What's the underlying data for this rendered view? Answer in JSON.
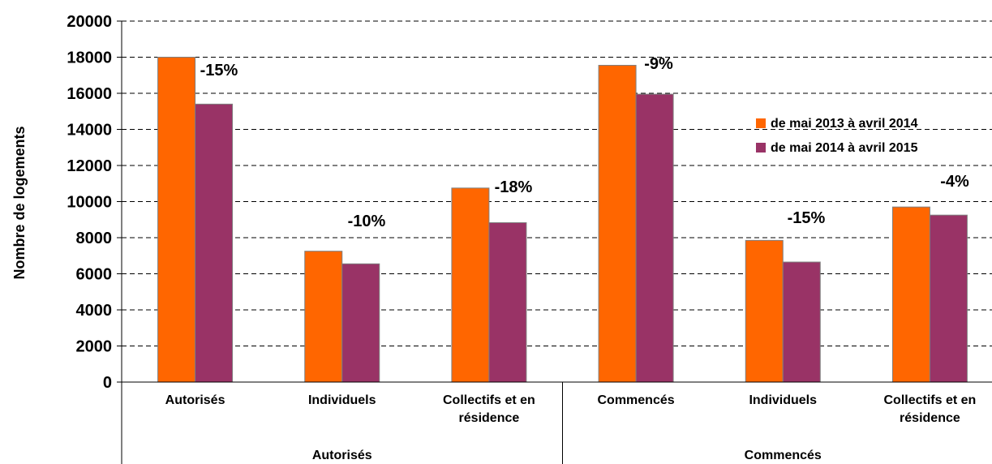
{
  "chart_data": {
    "type": "bar",
    "ylabel": "Nombre de logements",
    "ylim": [
      0,
      20000
    ],
    "yticks": [
      0,
      2000,
      4000,
      6000,
      8000,
      10000,
      12000,
      14000,
      16000,
      18000,
      20000
    ],
    "grid": true,
    "legend_position": "right",
    "categories": [
      {
        "lines": [
          "Autorisés"
        ]
      },
      {
        "lines": [
          "Individuels"
        ]
      },
      {
        "lines": [
          "Collectifs et en",
          "résidence"
        ]
      },
      {
        "lines": [
          "Commencés"
        ]
      },
      {
        "lines": [
          "Individuels"
        ]
      },
      {
        "lines": [
          "Collectifs et en",
          "résidence"
        ]
      }
    ],
    "groups": [
      {
        "label": "Autorisés",
        "span": [
          0,
          2
        ]
      },
      {
        "label": "Commencés",
        "span": [
          3,
          5
        ]
      }
    ],
    "series": [
      {
        "name": "de mai 2013 à avril 2014",
        "color": "#FF6600",
        "values": [
          18000,
          7250,
          10750,
          17550,
          7850,
          9700
        ]
      },
      {
        "name": "de mai 2014 à avril 2015",
        "color": "#993366",
        "values": [
          15400,
          6550,
          8830,
          15950,
          6650,
          9250
        ]
      }
    ],
    "annotations": [
      "-15%",
      "-10%",
      "-18%",
      "-9%",
      "-15%",
      "-4%"
    ]
  }
}
